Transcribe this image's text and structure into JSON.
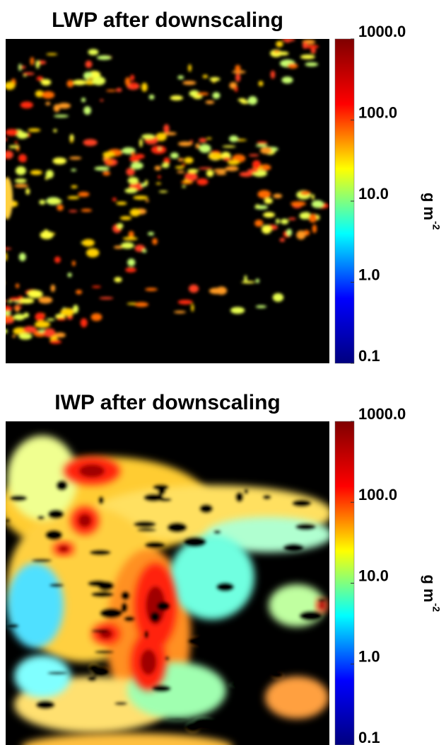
{
  "chart_data": [
    {
      "type": "heatmap",
      "title": "LWP after downscaling",
      "colorbar": {
        "scale": "log",
        "lim": [
          0.1,
          1000
        ],
        "ticks": [
          {
            "value": 1000,
            "label": "1000.0"
          },
          {
            "value": 100,
            "label": "100.0"
          },
          {
            "value": 10,
            "label": "10.0"
          },
          {
            "value": 1,
            "label": "1.0"
          },
          0.1
        ],
        "label": "g m",
        "label_superscript": "-2",
        "colors": [
          "#00007f",
          "#0000ff",
          "#00ffff",
          "#ffff00",
          "#ff0000",
          "#7f0000"
        ]
      }
    },
    {
      "type": "heatmap",
      "title": "IWP after downscaling",
      "colorbar": {
        "scale": "log",
        "lim": [
          0.1,
          1000
        ],
        "ticks": [
          {
            "value": 1000,
            "label": "1000.0"
          },
          {
            "value": 100,
            "label": "100.0"
          },
          {
            "value": 10,
            "label": "10.0"
          },
          {
            "value": 1,
            "label": "1.0"
          },
          0.1
        ],
        "label": "g m",
        "label_superscript": "-2",
        "colors": [
          "#00007f",
          "#0000ff",
          "#00ffff",
          "#ffff00",
          "#ff0000",
          "#7f0000"
        ]
      }
    }
  ]
}
